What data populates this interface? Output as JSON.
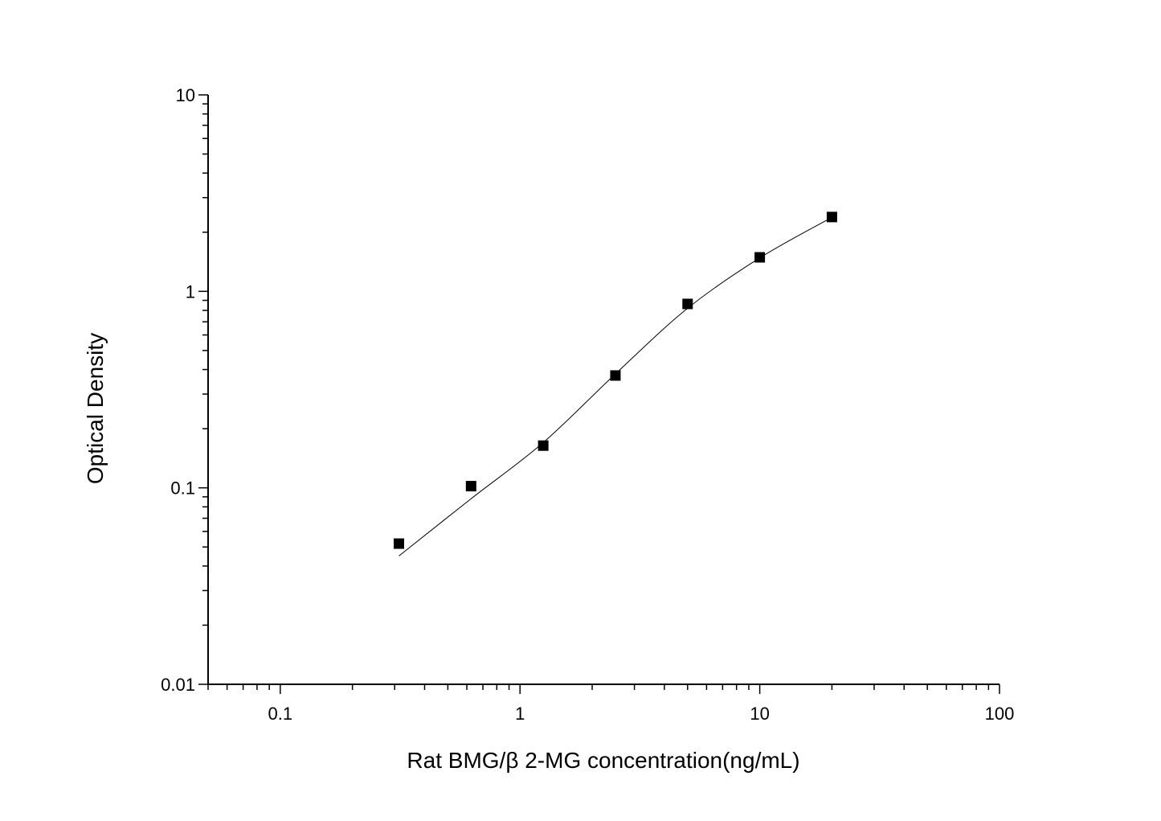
{
  "chart_data": {
    "type": "scatter",
    "title": "",
    "xlabel": "Rat BMG/β 2-MG concentration(ng/mL)",
    "ylabel": "Optical Density",
    "x_scale": "log",
    "y_scale": "log",
    "xlim": [
      0.05,
      100
    ],
    "ylim": [
      0.01,
      10
    ],
    "x_ticks": [
      "0.1",
      "1",
      "10",
      "100"
    ],
    "y_ticks": [
      "0.01",
      "0.1",
      "1",
      "10"
    ],
    "grid": false,
    "legend": "none",
    "marker_color": "#000000",
    "series": [
      {
        "kind": "points",
        "marker": "square",
        "x": [
          0.3125,
          0.625,
          1.25,
          2.5,
          5,
          10,
          20
        ],
        "y": [
          0.052,
          0.102,
          0.164,
          0.373,
          0.863,
          1.49,
          2.39
        ]
      },
      {
        "kind": "fit-curve",
        "x": [
          0.3125,
          0.625,
          1.25,
          2.5,
          5,
          10,
          20
        ],
        "y": [
          0.045,
          0.088,
          0.17,
          0.38,
          0.82,
          1.48,
          2.38
        ]
      }
    ]
  }
}
